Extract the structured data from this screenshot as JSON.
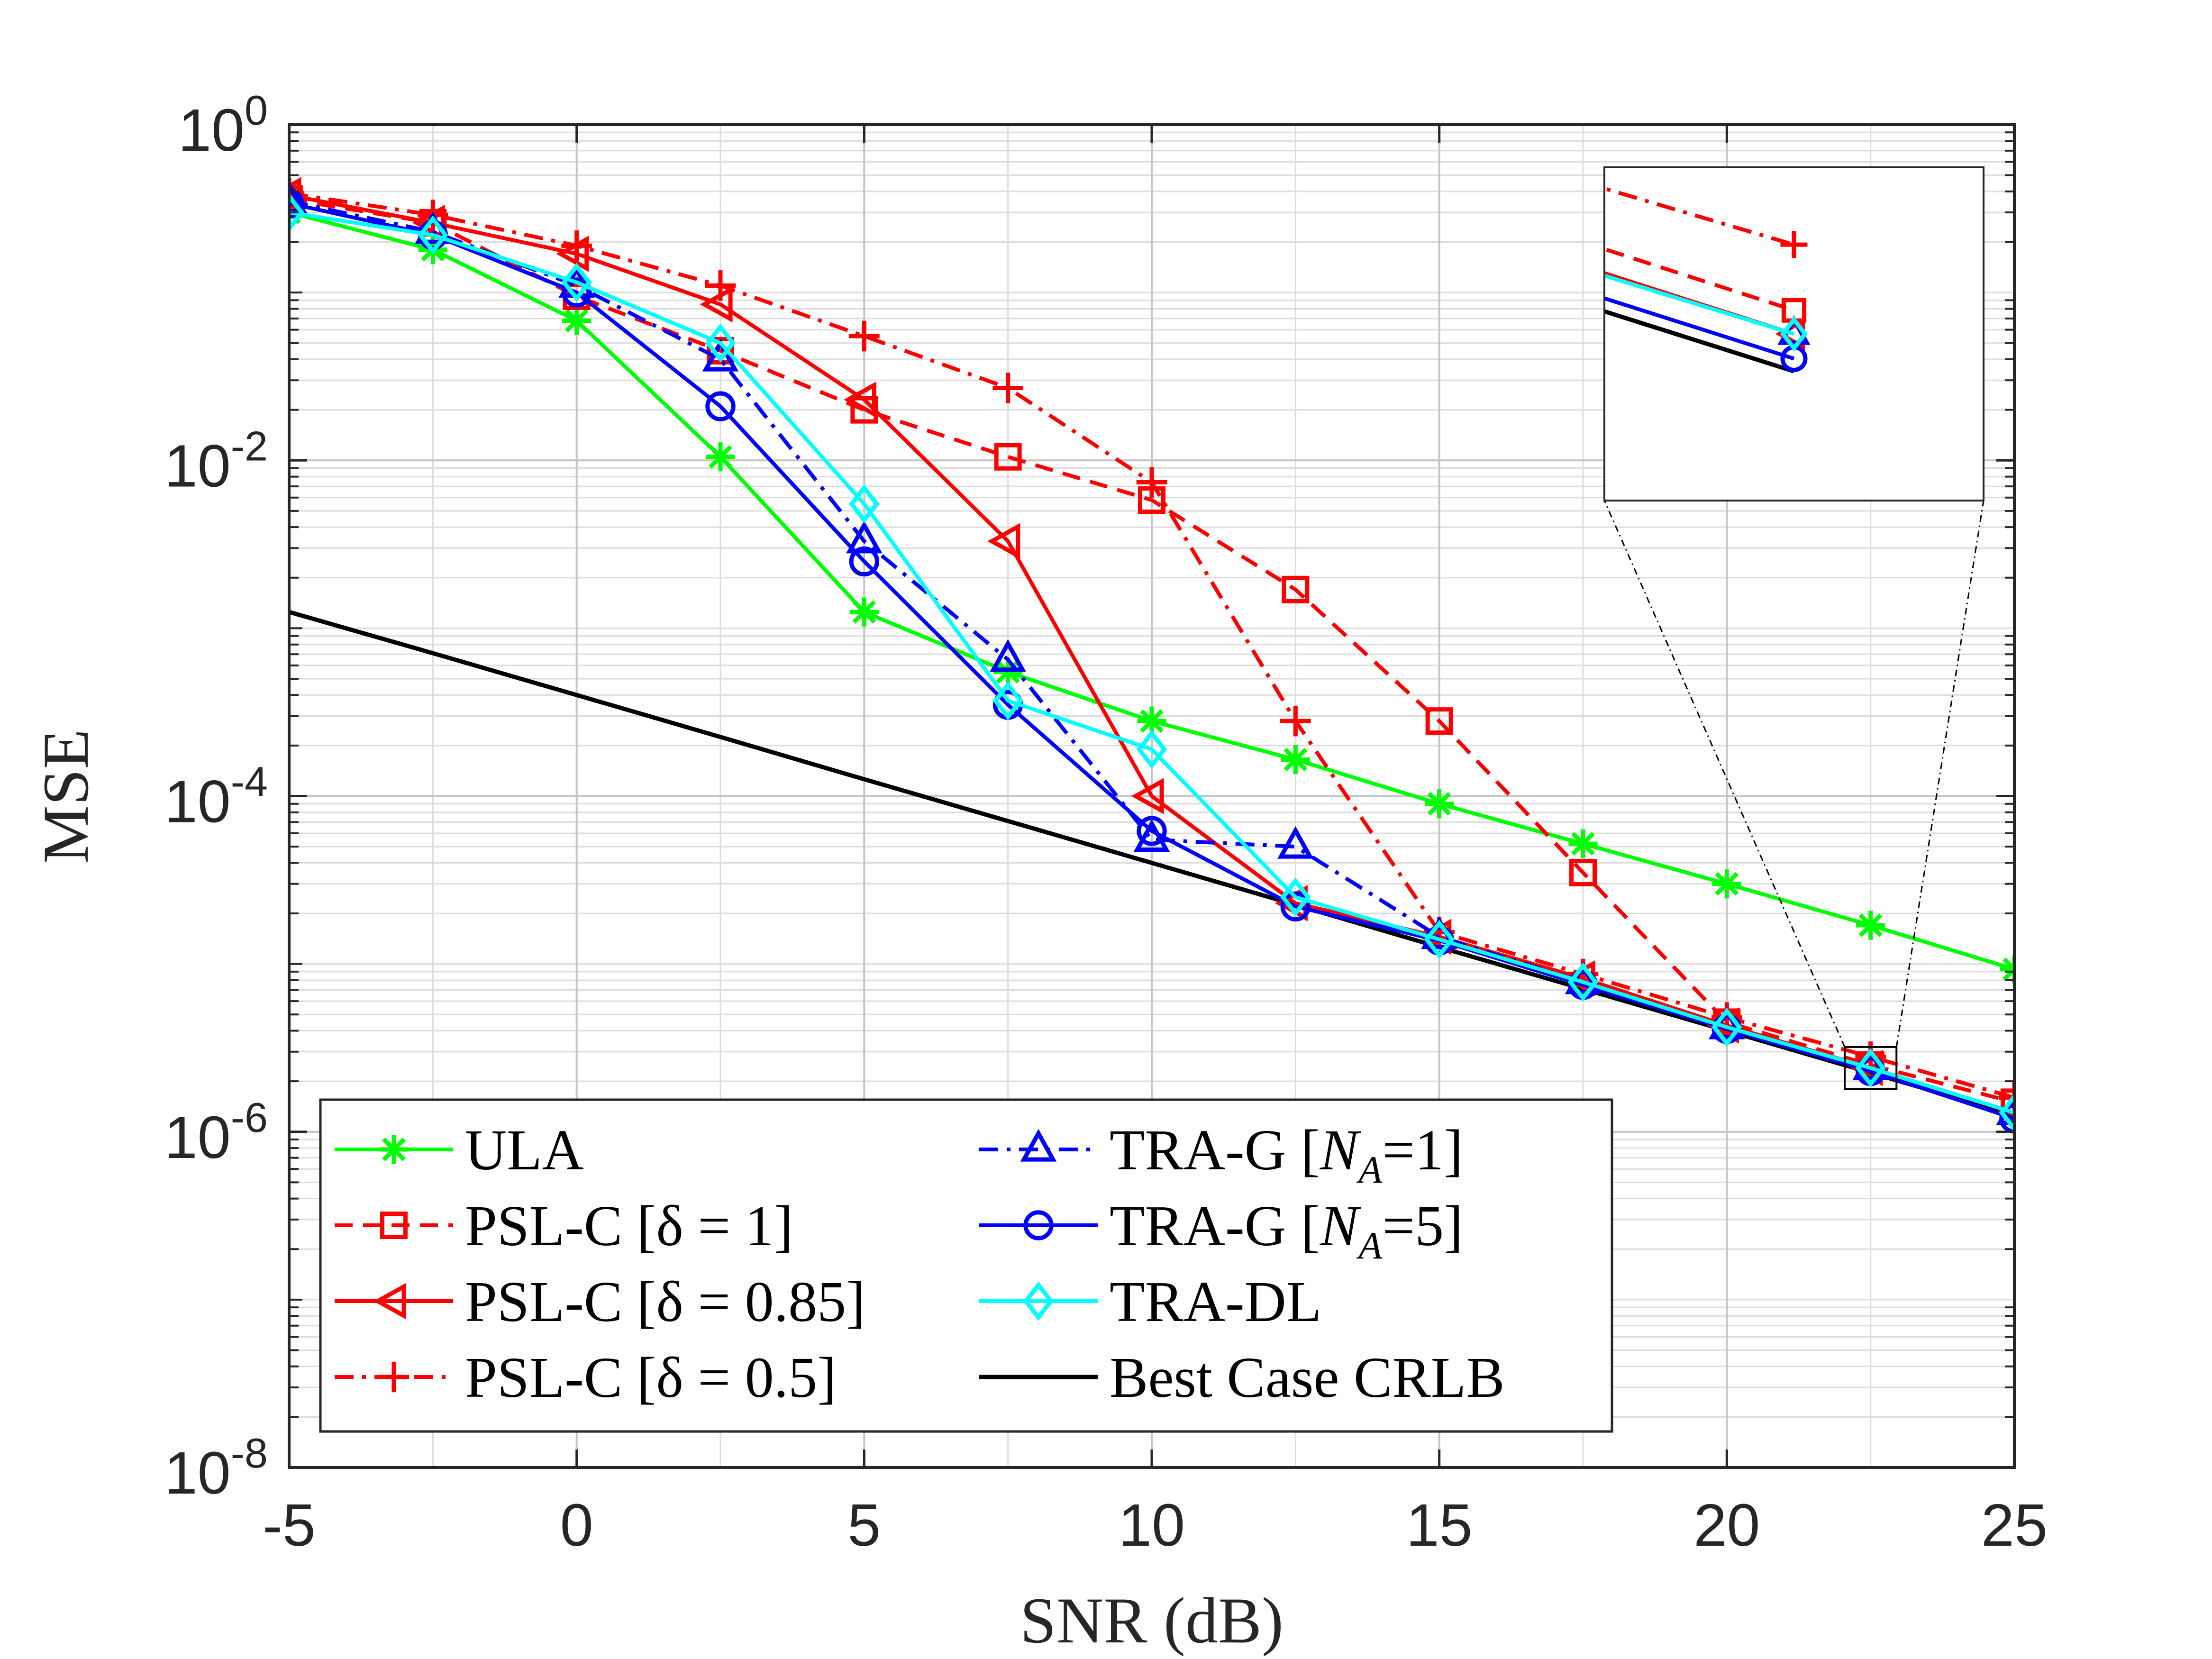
{
  "chart_data": {
    "type": "line",
    "title": "",
    "xlabel": "SNR (dB)",
    "ylabel": "MSE",
    "yscale": "log",
    "xlim": [
      -5,
      25
    ],
    "ylim": [
      1e-08,
      1
    ],
    "grid": true,
    "x_ticks": [
      -5,
      0,
      5,
      10,
      15,
      20,
      25
    ],
    "x_tick_labels": [
      "-5",
      "0",
      "5",
      "10",
      "15",
      "20",
      "25"
    ],
    "y_ticks": [
      {
        "value": 1,
        "base": "10",
        "exp": "0"
      },
      {
        "value": 0.01,
        "base": "10",
        "exp": "-2"
      },
      {
        "value": 0.0001,
        "base": "10",
        "exp": "-4"
      },
      {
        "value": 1e-06,
        "base": "10",
        "exp": "-6"
      },
      {
        "value": 1e-08,
        "base": "10",
        "exp": "-8"
      }
    ],
    "x": [
      -5,
      -2.5,
      0,
      2.5,
      5,
      7.5,
      10,
      12.5,
      15,
      17.5,
      20,
      22.5,
      25
    ],
    "series": [
      {
        "name": "ULA",
        "legend": [
          {
            "t": "ULA"
          }
        ],
        "color": "#00ff00",
        "dash": "solid",
        "marker": "asterisk",
        "values": [
          0.3,
          0.18,
          0.068,
          0.0105,
          0.00125,
          0.00055,
          0.00028,
          0.000165,
          9e-05,
          5.2e-05,
          3e-05,
          1.7e-05,
          9.3e-06
        ]
      },
      {
        "name": "PSL-C [δ = 1]",
        "legend": [
          {
            "t": "PSL-C [δ = 1]"
          }
        ],
        "color": "#ff0000",
        "dash": "dashed",
        "marker": "square",
        "values": [
          0.36,
          0.26,
          0.095,
          0.045,
          0.02,
          0.0105,
          0.0058,
          0.0017,
          0.00028,
          3.5e-05,
          4.5e-06,
          2.5e-06,
          1.5e-06
        ]
      },
      {
        "name": "PSL-C [δ = 0.85]",
        "legend": [
          {
            "t": "PSL-C [δ = 0.85]"
          }
        ],
        "color": "#ff0000",
        "dash": "solid",
        "marker": "triangle-left",
        "values": [
          0.38,
          0.26,
          0.17,
          0.085,
          0.023,
          0.0033,
          0.0001,
          2.3e-05,
          1.45e-05,
          8.2e-06,
          4.3e-06,
          2.4e-06,
          1.3e-06
        ]
      },
      {
        "name": "PSL-C [δ = 0.5]",
        "legend": [
          {
            "t": "PSL-C [δ = 0.5]"
          }
        ],
        "color": "#ff0000",
        "dash": "dashdot",
        "marker": "plus",
        "values": [
          0.39,
          0.29,
          0.19,
          0.11,
          0.055,
          0.027,
          0.0074,
          0.00028,
          1.55e-05,
          8.7e-06,
          4.8e-06,
          2.8e-06,
          1.6e-06
        ]
      },
      {
        "name": "TRA-G [N_A=1]",
        "legend": [
          {
            "t": "TRA-G ["
          },
          {
            "t": "N",
            "it": true
          },
          {
            "t": "A",
            "sub": true
          },
          {
            "t": "=1]"
          }
        ],
        "color": "#0000ff",
        "dash": "dashdot",
        "marker": "triangle-up",
        "values": [
          0.35,
          0.23,
          0.11,
          0.04,
          0.0033,
          0.00065,
          5.5e-05,
          5e-05,
          1.45e-05,
          7.8e-06,
          4.2e-06,
          2.4e-06,
          1.3e-06
        ]
      },
      {
        "name": "TRA-G [N_A=5]",
        "legend": [
          {
            "t": "TRA-G ["
          },
          {
            "t": "N",
            "it": true
          },
          {
            "t": "A",
            "sub": true
          },
          {
            "t": "=5]"
          }
        ],
        "color": "#0000ff",
        "dash": "solid",
        "marker": "circle",
        "values": [
          0.34,
          0.22,
          0.1,
          0.021,
          0.0025,
          0.00035,
          6.2e-05,
          2.2e-05,
          1.38e-05,
          7.5e-06,
          4.1e-06,
          2.3e-06,
          1.2e-06
        ]
      },
      {
        "name": "TRA-DL",
        "legend": [
          {
            "t": "TRA-DL"
          }
        ],
        "color": "#00ffff",
        "dash": "solid",
        "marker": "diamond",
        "values": [
          0.3,
          0.22,
          0.115,
          0.05,
          0.0055,
          0.00037,
          0.00019,
          2.5e-05,
          1.4e-05,
          7.8e-06,
          4.2e-06,
          2.4e-06,
          1.3e-06
        ]
      },
      {
        "name": "Best Case CRLB",
        "legend": [
          {
            "t": "Best Case CRLB"
          }
        ],
        "color": "#000000",
        "dash": "solid",
        "marker": "none",
        "values": [
          0.00125,
          0.00071,
          0.0004,
          0.000225,
          0.000126,
          7.1e-05,
          4e-05,
          2.25e-05,
          1.26e-05,
          7.1e-06,
          4e-06,
          2.25e-06,
          1.26e-06
        ]
      }
    ],
    "inset": {
      "description": "zoomed view of region near SNR = 22.5 dB",
      "xlim": [
        22.05,
        22.95
      ],
      "ylim": [
        1.8e-06,
        3.2e-06
      ]
    }
  }
}
